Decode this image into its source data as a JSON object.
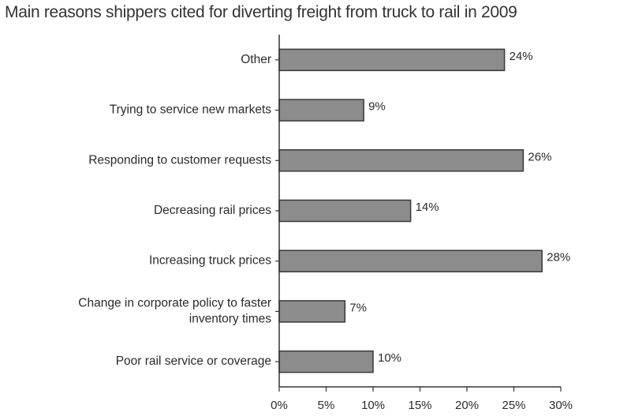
{
  "chart_data": {
    "type": "bar",
    "orientation": "horizontal",
    "title": "Main reasons shippers cited for diverting freight from truck to rail in 2009",
    "categories": [
      [
        "Other"
      ],
      [
        "Trying to service new markets"
      ],
      [
        "Responding to customer requests"
      ],
      [
        "Decreasing rail prices"
      ],
      [
        "Increasing truck prices"
      ],
      [
        "Change in corporate policy to faster",
        "inventory times"
      ],
      [
        "Poor rail service or coverage"
      ]
    ],
    "values": [
      24,
      9,
      26,
      14,
      28,
      7,
      10
    ],
    "value_labels": [
      "24%",
      "9%",
      "26%",
      "14%",
      "28%",
      "7%",
      "10%"
    ],
    "xlim": [
      0,
      30
    ],
    "xticks": [
      0,
      5,
      10,
      15,
      20,
      25,
      30
    ],
    "xtick_labels": [
      "0%",
      "5%",
      "10%",
      "15%",
      "20%",
      "25%",
      "30%"
    ],
    "xlabel": "",
    "ylabel": "",
    "grid": false,
    "legend": "none",
    "colors": {
      "bar_fill": "#8c8c8c",
      "bar_stroke": "#3a3a3a",
      "axis": "#333333",
      "text": "#2b2b2b"
    }
  }
}
